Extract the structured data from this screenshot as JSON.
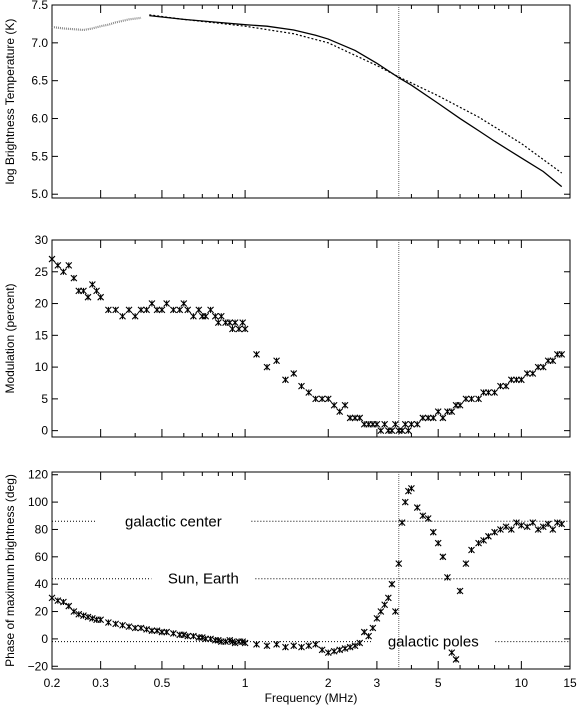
{
  "colors": {
    "axis": "#000000",
    "temperature_observed": "#888888",
    "reference_line": "#666666"
  },
  "chart_data": [
    {
      "type": "line",
      "ylabel": "log Brightness Temperature (K)",
      "xlabel": "",
      "xscale": "log",
      "xlim": [
        0.2,
        15
      ],
      "ylim": [
        4.95,
        7.5
      ],
      "yticks": [
        5.0,
        5.5,
        6.0,
        6.5,
        7.0,
        7.5
      ],
      "ytick_labels": [
        "5.0",
        "5.5",
        "6.0",
        "6.5",
        "7.0",
        "7.5"
      ],
      "vline_x": 3.6,
      "series": [
        {
          "style": "dots-gray",
          "x": [
            0.2,
            0.22,
            0.24,
            0.26,
            0.28,
            0.3,
            0.32,
            0.34,
            0.36,
            0.38,
            0.4,
            0.42
          ],
          "y": [
            7.21,
            7.19,
            7.18,
            7.17,
            7.19,
            7.22,
            7.24,
            7.27,
            7.29,
            7.31,
            7.32,
            7.33
          ]
        },
        {
          "style": "dotted",
          "x": [
            0.45,
            0.6,
            0.8,
            1.0,
            1.5,
            2.0,
            3.0,
            3.6,
            5.0,
            7.0,
            10.0,
            14.0
          ],
          "y": [
            7.37,
            7.31,
            7.26,
            7.22,
            7.12,
            7.0,
            6.7,
            6.55,
            6.3,
            6.02,
            5.67,
            5.28
          ]
        },
        {
          "style": "solid",
          "x": [
            0.45,
            0.6,
            0.8,
            1.0,
            1.2,
            1.5,
            1.8,
            2.0,
            2.5,
            3.0,
            3.6,
            4.0,
            5.0,
            6.0,
            7.0,
            8.0,
            10.0,
            12.0,
            14.0
          ],
          "y": [
            7.36,
            7.31,
            7.27,
            7.24,
            7.22,
            7.17,
            7.1,
            7.05,
            6.9,
            6.73,
            6.54,
            6.44,
            6.2,
            6.0,
            5.84,
            5.7,
            5.48,
            5.3,
            5.1
          ]
        }
      ]
    },
    {
      "type": "scatter",
      "ylabel": "Modulation  (percent)",
      "xlabel": "",
      "xscale": "log",
      "xlim": [
        0.2,
        15
      ],
      "ylim": [
        -1,
        30
      ],
      "yticks": [
        0,
        5,
        10,
        15,
        20,
        25,
        30
      ],
      "ytick_labels": [
        "0",
        "5",
        "10",
        "15",
        "20",
        "25",
        "30"
      ],
      "vline_x": 3.6,
      "series": [
        {
          "marker": "x",
          "x": [
            0.2,
            0.21,
            0.22,
            0.23,
            0.24,
            0.25,
            0.26,
            0.27,
            0.28,
            0.29,
            0.3,
            0.32,
            0.34,
            0.36,
            0.38,
            0.4,
            0.42,
            0.44,
            0.46,
            0.48,
            0.5,
            0.52,
            0.55,
            0.58,
            0.6,
            0.62,
            0.65,
            0.68,
            0.7,
            0.72,
            0.75,
            0.78,
            0.8,
            0.82,
            0.85,
            0.88,
            0.9,
            0.92,
            0.95,
            0.98,
            1.0,
            1.1,
            1.2,
            1.3,
            1.4,
            1.5,
            1.6,
            1.7,
            1.8,
            1.9,
            2.0,
            2.1,
            2.2,
            2.3,
            2.4,
            2.5,
            2.6,
            2.7,
            2.8,
            2.9,
            3.0,
            3.1,
            3.2,
            3.3,
            3.4,
            3.5,
            3.6,
            3.7,
            3.8,
            3.9,
            4.0,
            4.2,
            4.4,
            4.6,
            4.8,
            5.0,
            5.2,
            5.4,
            5.6,
            5.8,
            6.0,
            6.3,
            6.6,
            7.0,
            7.3,
            7.6,
            8.0,
            8.4,
            8.8,
            9.2,
            9.6,
            10.0,
            10.5,
            11.0,
            11.5,
            12.0,
            12.5,
            13.0,
            13.5,
            14.0
          ],
          "y": [
            27,
            26,
            25,
            26,
            24,
            22,
            22,
            21,
            23,
            22,
            21,
            19,
            19,
            18,
            19,
            18,
            19,
            19,
            20,
            19,
            19,
            20,
            19,
            19,
            20,
            19,
            18,
            19,
            18,
            18,
            19,
            18,
            17,
            18,
            17,
            17,
            16,
            17,
            16,
            17,
            16,
            12,
            10,
            11,
            8,
            9,
            7,
            6,
            5,
            5,
            5,
            4,
            3,
            4,
            2,
            2,
            2,
            1,
            1,
            1,
            1,
            0,
            1,
            0,
            0,
            1,
            0,
            0,
            1,
            0,
            1,
            1,
            2,
            2,
            2,
            3,
            2,
            3,
            3,
            4,
            4,
            5,
            5,
            5,
            6,
            6,
            6,
            7,
            7,
            8,
            8,
            8,
            9,
            9,
            10,
            10,
            11,
            11,
            12,
            12
          ]
        }
      ]
    },
    {
      "type": "scatter",
      "ylabel": "Phase of maximum brightness  (deg)",
      "xlabel": "Frequency  (MHz)",
      "xscale": "log",
      "xlim": [
        0.2,
        15
      ],
      "ylim": [
        -22,
        122
      ],
      "yticks": [
        -20,
        0,
        20,
        40,
        60,
        80,
        100,
        120
      ],
      "ytick_labels": [
        "−20",
        "0",
        "20",
        "40",
        "60",
        "80",
        "100",
        "120"
      ],
      "xticks": [
        0.2,
        0.3,
        0.5,
        1,
        2,
        3,
        5,
        10,
        15
      ],
      "xtick_labels": [
        "0.2",
        "0.3",
        "0.5",
        "1",
        "2",
        "3",
        "5",
        "10",
        "15"
      ],
      "vline_x": 3.6,
      "reference_lines": [
        {
          "y": 86,
          "label": "galactic center"
        },
        {
          "y": 44,
          "label": "Sun, Earth"
        },
        {
          "y": -2,
          "label": "galactic poles"
        }
      ],
      "series": [
        {
          "marker": "x",
          "x": [
            0.2,
            0.21,
            0.22,
            0.23,
            0.24,
            0.25,
            0.26,
            0.27,
            0.28,
            0.29,
            0.3,
            0.32,
            0.34,
            0.36,
            0.38,
            0.4,
            0.42,
            0.44,
            0.46,
            0.48,
            0.5,
            0.52,
            0.55,
            0.58,
            0.6,
            0.62,
            0.65,
            0.68,
            0.7,
            0.72,
            0.75,
            0.78,
            0.8,
            0.82,
            0.85,
            0.88,
            0.9,
            0.92,
            0.95,
            0.98,
            1.0,
            1.1,
            1.2,
            1.3,
            1.4,
            1.5,
            1.6,
            1.7,
            1.8,
            1.9,
            2.0,
            2.1,
            2.2,
            2.3,
            2.4,
            2.5,
            2.6,
            2.7,
            2.8,
            2.9,
            3.0,
            3.1,
            3.2,
            3.3,
            3.4,
            3.5,
            3.6,
            3.7,
            3.8,
            3.9,
            4.0,
            4.2,
            4.4,
            4.6,
            4.8,
            5.0,
            5.2,
            5.4,
            5.6,
            5.8,
            6.0,
            6.3,
            6.6,
            7.0,
            7.3,
            7.6,
            8.0,
            8.4,
            8.8,
            9.2,
            9.6,
            10.0,
            10.5,
            11.0,
            11.5,
            12.0,
            12.5,
            13.0,
            13.5,
            14.0
          ],
          "y": [
            30,
            28,
            27,
            24,
            20,
            18,
            17,
            16,
            15,
            14,
            14,
            12,
            11,
            10,
            9,
            8,
            8,
            7,
            6,
            6,
            5,
            5,
            4,
            3,
            3,
            2,
            2,
            1,
            1,
            0,
            0,
            -1,
            -1,
            -2,
            -2,
            -1,
            -2,
            -3,
            -2,
            -2,
            -3,
            -4,
            -5,
            -4,
            -6,
            -5,
            -6,
            -5,
            -4,
            -8,
            -10,
            -9,
            -8,
            -7,
            -6,
            -5,
            -3,
            5,
            2,
            8,
            15,
            20,
            25,
            30,
            40,
            20,
            55,
            85,
            100,
            108,
            110,
            96,
            90,
            88,
            78,
            70,
            60,
            45,
            -10,
            -15,
            35,
            55,
            65,
            70,
            72,
            75,
            78,
            80,
            82,
            80,
            85,
            83,
            82,
            85,
            80,
            82,
            84,
            80,
            85,
            84
          ]
        }
      ]
    }
  ]
}
